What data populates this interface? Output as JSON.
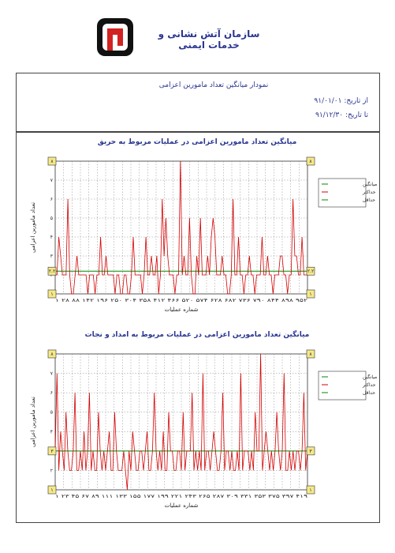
{
  "header": {
    "org_title": "سازمان آتش نشانی و خدمات ایمنی",
    "report_title": "نمودار میانگین تعداد مامورین اعزامی",
    "from_date": "از تاریخ: ۹۱/۰۱/۰۱",
    "to_date": "تا تاریخ: ۹۱/۱۲/۳۰"
  },
  "colors": {
    "series": "#d40000",
    "average": "#008800",
    "grid": "#888888",
    "marker": "#f5e88a",
    "title": "#2a3590"
  },
  "chart_data": [
    {
      "type": "line",
      "title": "میانگین تعداد مامورین اعزامی در عملیات مربوط به حریق",
      "xlabel": "شماره عملیات",
      "ylabel": "تعداد مامورین اعزامی",
      "ylim": [
        1,
        8
      ],
      "yticks": [
        "۱",
        "۲",
        "۳",
        "۴",
        "۵",
        "۶",
        "۷",
        "۸"
      ],
      "xtick_text": "۱ ۲۸ ۸۸ ۱۴۲ ۱۹۶ ۲۵۰ ۳۰۴ ۳۵۸ ۴۱۲ ۴۶۶ ۵۲۰ ۵۷۴ ۶۲۸ ۶۸۲ ۷۳۶ ۷۹۰ ۸۴۴ ۸۹۸ ۹۵۲",
      "legend": [
        "میانگین",
        "حداکثر",
        "حداقل"
      ],
      "markers": {
        "max": "۸",
        "min": "۱",
        "avg": "۲.۲"
      },
      "average": 2.2,
      "grid": true,
      "series": [
        {
          "values": [
            2,
            2,
            4,
            3,
            2,
            2,
            2,
            6,
            2,
            1,
            1,
            2,
            3,
            2,
            2,
            2,
            2,
            2,
            1,
            2,
            2,
            2,
            1,
            2,
            2,
            4,
            2,
            2,
            3,
            2,
            2,
            2,
            2,
            1,
            2,
            2,
            1,
            1,
            2,
            2,
            1,
            1,
            2,
            4,
            2,
            2,
            2,
            2,
            1,
            2,
            4,
            2,
            2,
            3,
            2,
            2,
            3,
            1,
            2,
            6,
            3,
            5,
            3,
            2,
            2,
            2,
            1,
            2,
            2,
            8,
            2,
            3,
            2,
            2,
            5,
            2,
            1,
            1,
            3,
            2,
            5,
            2,
            2,
            2,
            3,
            2,
            4,
            5,
            4,
            2,
            2,
            2,
            3,
            2,
            2,
            1,
            1,
            2,
            6,
            2,
            2,
            4,
            2,
            2,
            1,
            2,
            2,
            3,
            2,
            2,
            1,
            2,
            2,
            2,
            4,
            2,
            2,
            3,
            2,
            2,
            1,
            2,
            2,
            2,
            3,
            3,
            2,
            2,
            1,
            2,
            2,
            6,
            3,
            3,
            2,
            2,
            4,
            2,
            2,
            2
          ]
        }
      ]
    },
    {
      "type": "line",
      "title": "میانگین تعداد مامورین اعزامی در عملیات مربوط به امداد و نجات",
      "xlabel": "شماره عملیات",
      "ylabel": "تعداد مامورین اعزامی",
      "ylim": [
        1,
        8
      ],
      "yticks": [
        "۱",
        "۲",
        "۳",
        "۴",
        "۵",
        "۶",
        "۷",
        "۸"
      ],
      "xtick_text": "۱ ۲۳ ۴۵ ۶۷ ۸۹ ۱۱۱ ۱۳۳ ۱۵۵ ۱۷۷ ۱۹۹ ۲۲۱ ۲۴۳ ۲۶۵ ۲۸۷ ۳۰۹ ۳۳۱ ۳۵۳ ۳۷۵ ۳۹۷ ۴۱۹",
      "legend": [
        "میانگین",
        "حداکثر",
        "حداقل"
      ],
      "markers": {
        "max": "۸",
        "min": "۱",
        "avg": "۳"
      },
      "average": 3,
      "grid": true,
      "series": [
        {
          "values": [
            3,
            7,
            2,
            4,
            3,
            2,
            5,
            3,
            2,
            2,
            3,
            6,
            2,
            2,
            3,
            2,
            4,
            2,
            3,
            6,
            2,
            3,
            2,
            2,
            5,
            3,
            2,
            3,
            2,
            3,
            4,
            2,
            2,
            5,
            3,
            2,
            2,
            2,
            3,
            2,
            1,
            3,
            2,
            4,
            3,
            2,
            2,
            3,
            3,
            2,
            3,
            4,
            2,
            2,
            3,
            6,
            3,
            2,
            3,
            2,
            4,
            2,
            2,
            5,
            3,
            3,
            2,
            2,
            3,
            3,
            2,
            5,
            2,
            3,
            3,
            3,
            6,
            2,
            3,
            2,
            3,
            2,
            7,
            2,
            3,
            3,
            2,
            3,
            4,
            3,
            2,
            2,
            3,
            6,
            2,
            3,
            3,
            2,
            3,
            2,
            2,
            3,
            2,
            7,
            2,
            3,
            3,
            3,
            2,
            3,
            2,
            5,
            3,
            3,
            8,
            2,
            3,
            4,
            3,
            2,
            3,
            2,
            3,
            5,
            3,
            2,
            3,
            7,
            2,
            2,
            3,
            2,
            3,
            2,
            3,
            3,
            2,
            3,
            6,
            2,
            3
          ]
        }
      ]
    }
  ]
}
